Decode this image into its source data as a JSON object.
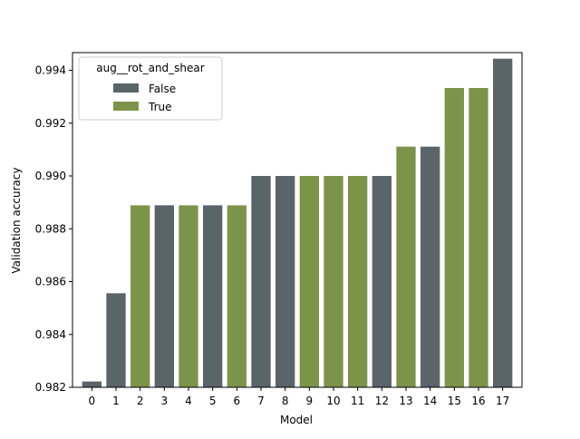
{
  "chart_data": {
    "type": "bar",
    "title": "",
    "xlabel": "Model",
    "ylabel": "Validation accuracy",
    "categories": [
      "0",
      "1",
      "2",
      "3",
      "4",
      "5",
      "6",
      "7",
      "8",
      "9",
      "10",
      "11",
      "12",
      "13",
      "14",
      "15",
      "16",
      "17"
    ],
    "values": [
      0.98222,
      0.98556,
      0.98889,
      0.98889,
      0.98889,
      0.98889,
      0.98889,
      0.99,
      0.99,
      0.99,
      0.99,
      0.99,
      0.99,
      0.99111,
      0.99111,
      0.99333,
      0.99333,
      0.99444
    ],
    "groups": [
      "False",
      "False",
      "True",
      "False",
      "True",
      "False",
      "True",
      "False",
      "False",
      "True",
      "True",
      "True",
      "False",
      "True",
      "False",
      "True",
      "True",
      "False"
    ],
    "ylim": [
      0.982,
      0.99467
    ],
    "yticks": [
      0.982,
      0.984,
      0.986,
      0.988,
      0.99,
      0.992,
      0.994
    ],
    "ytick_labels": [
      "0.982",
      "0.984",
      "0.986",
      "0.988",
      "0.990",
      "0.992",
      "0.994"
    ],
    "grid": false,
    "legend": {
      "title": "aug__rot_and_shear",
      "placement": "top-left",
      "entries": [
        {
          "label": "False",
          "color": "#5a6569"
        },
        {
          "label": "True",
          "color": "#7c9449"
        }
      ]
    },
    "colors": {
      "False": "#5a6569",
      "True": "#7c9449"
    }
  }
}
